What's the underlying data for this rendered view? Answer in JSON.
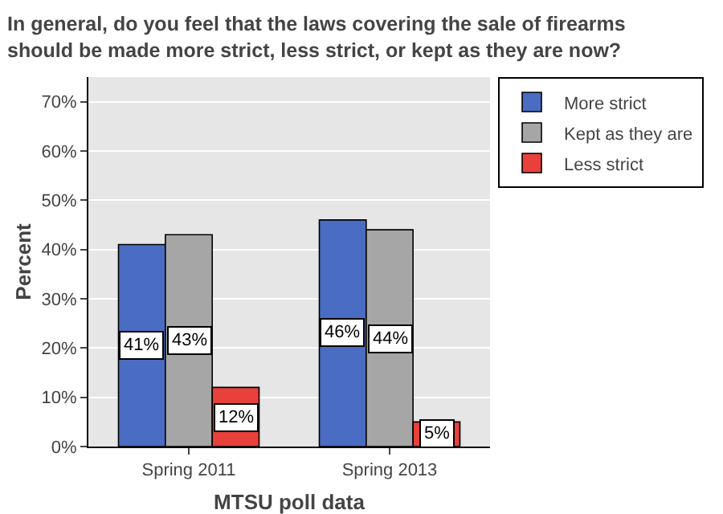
{
  "chart_data": {
    "type": "bar",
    "title": "In general, do you feel that the laws covering the sale of firearms should be made more strict, less strict, or kept as they are now?",
    "xlabel": "MTSU poll data",
    "ylabel": "Percent",
    "categories": [
      "Spring 2011",
      "Spring 2013"
    ],
    "series": [
      {
        "name": "More strict",
        "color": "#4a6cc2",
        "values": [
          41,
          46
        ],
        "value_labels": [
          "41%",
          "46%"
        ]
      },
      {
        "name": "Kept as they are",
        "color": "#a6a6a6",
        "values": [
          43,
          44
        ],
        "value_labels": [
          "43%",
          "44%"
        ]
      },
      {
        "name": "Less strict",
        "color": "#e8413b",
        "values": [
          12,
          5
        ],
        "value_labels": [
          "12%",
          "5%"
        ]
      }
    ],
    "ylim": [
      0,
      75
    ],
    "yticks": [
      {
        "value": 0,
        "label": "0%"
      },
      {
        "value": 10,
        "label": "10%"
      },
      {
        "value": 20,
        "label": "20%"
      },
      {
        "value": 30,
        "label": "30%"
      },
      {
        "value": 40,
        "label": "40%"
      },
      {
        "value": 50,
        "label": "50%"
      },
      {
        "value": 60,
        "label": "60%"
      },
      {
        "value": 70,
        "label": "70%"
      }
    ],
    "grid": "y",
    "legend": "top right"
  }
}
